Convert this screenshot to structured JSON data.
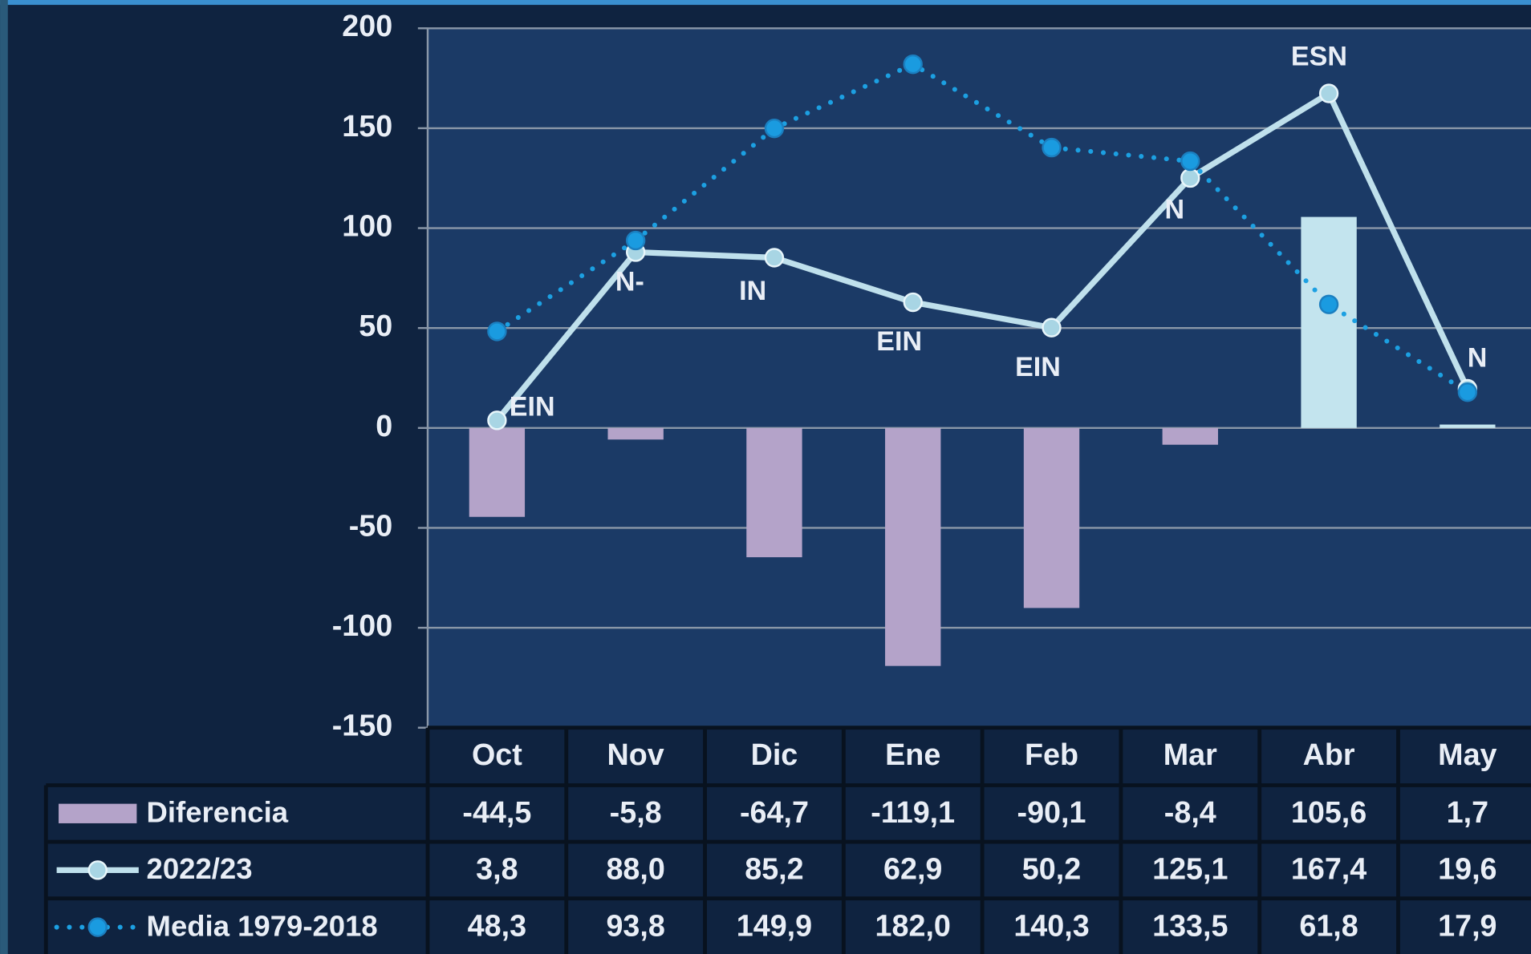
{
  "chart_data": {
    "type": "bar-line-table",
    "categories": [
      "Oct",
      "Nov",
      "Dic",
      "Ene",
      "Feb",
      "Mar",
      "Abr",
      "May"
    ],
    "ylim": [
      -150,
      200
    ],
    "yticks": [
      -150,
      -100,
      -50,
      0,
      50,
      100,
      150,
      200
    ],
    "grid": true,
    "series": [
      {
        "name": "Diferencia",
        "kind": "bar",
        "color": "#b4a3c9",
        "positive_color": "#c3e4ee",
        "values": [
          -44.5,
          -5.8,
          -64.7,
          -119.1,
          -90.1,
          -8.4,
          105.6,
          1.7
        ],
        "value_labels": [
          "-44,5",
          "-5,8",
          "-64,7",
          "-119,1",
          "-90,1",
          "-8,4",
          "105,6",
          "1,7"
        ]
      },
      {
        "name": "2022/23",
        "kind": "line",
        "color": "#bfe0ec",
        "marker_color": "#a8d5e4",
        "values": [
          3.8,
          88.0,
          85.2,
          62.9,
          50.2,
          125.1,
          167.4,
          19.6
        ],
        "value_labels": [
          "3,8",
          "88,0",
          "85,2",
          "62,9",
          "50,2",
          "125,1",
          "167,4",
          "19,6"
        ],
        "point_labels": [
          "EIN",
          "N-",
          "IN",
          "EIN",
          "EIN",
          "N",
          "ESN",
          "N"
        ]
      },
      {
        "name": "Media 1979-2018",
        "kind": "dotted-line",
        "color": "#1ca0e2",
        "marker_color": "#1a9be0",
        "values": [
          48.3,
          93.8,
          149.9,
          182.0,
          140.3,
          133.5,
          61.8,
          17.9
        ],
        "value_labels": [
          "48,3",
          "93,8",
          "149,9",
          "182,0",
          "140,3",
          "133,5",
          "61,8",
          "17,9"
        ]
      }
    ]
  }
}
